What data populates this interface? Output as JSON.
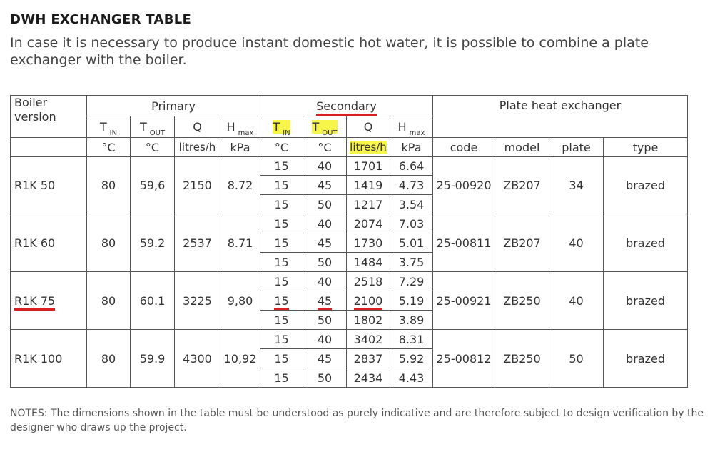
{
  "heading": "DWH EXCHANGER TABLE",
  "intro": "In case it is necessary to produce instant domestic hot water, it is possible to combine a plate exchanger with the boiler.",
  "header": {
    "boiler_version": "Boiler version",
    "primary": "Primary",
    "secondary": "Secondary",
    "plate": "Plate heat exchanger",
    "t": "T",
    "in": "IN",
    "out": "OUT",
    "q": "Q",
    "h": "H",
    "max": "max",
    "deg": "°C",
    "flow_unit": "litres/h",
    "pressure_unit": "kPa",
    "code": "code",
    "model": "model",
    "plate_col": "plate",
    "type": "type"
  },
  "rows": [
    {
      "version": "R1K 50",
      "p_tin": "80",
      "p_tout": "59,6",
      "p_q": "2150",
      "p_h": "8.72",
      "secondary": [
        {
          "tin": "15",
          "tout": "40",
          "q": "1701",
          "h": "6.64"
        },
        {
          "tin": "15",
          "tout": "45",
          "q": "1419",
          "h": "4.73"
        },
        {
          "tin": "15",
          "tout": "50",
          "q": "1217",
          "h": "3.54"
        }
      ],
      "code": "25-00920",
      "model": "ZB207",
      "plate": "34",
      "type": "brazed"
    },
    {
      "version": "R1K 60",
      "p_tin": "80",
      "p_tout": "59.2",
      "p_q": "2537",
      "p_h": "8.71",
      "secondary": [
        {
          "tin": "15",
          "tout": "40",
          "q": "2074",
          "h": "7.03"
        },
        {
          "tin": "15",
          "tout": "45",
          "q": "1730",
          "h": "5.01"
        },
        {
          "tin": "15",
          "tout": "50",
          "q": "1484",
          "h": "3.75"
        }
      ],
      "code": "25-00811",
      "model": "ZB207",
      "plate": "40",
      "type": "brazed"
    },
    {
      "version": "R1K 75",
      "p_tin": "80",
      "p_tout": "60.1",
      "p_q": "3225",
      "p_h": "9,80",
      "secondary": [
        {
          "tin": "15",
          "tout": "40",
          "q": "2518",
          "h": "7.29"
        },
        {
          "tin": "15",
          "tout": "45",
          "q": "2100",
          "h": "5.19"
        },
        {
          "tin": "15",
          "tout": "50",
          "q": "1802",
          "h": "3.89"
        }
      ],
      "code": "25-00921",
      "model": "ZB250",
      "plate": "40",
      "type": "brazed"
    },
    {
      "version": "R1K 100",
      "p_tin": "80",
      "p_tout": "59.9",
      "p_q": "4300",
      "p_h": "10,92",
      "secondary": [
        {
          "tin": "15",
          "tout": "40",
          "q": "3402",
          "h": "8.31"
        },
        {
          "tin": "15",
          "tout": "45",
          "q": "2837",
          "h": "5.92"
        },
        {
          "tin": "15",
          "tout": "50",
          "q": "2434",
          "h": "4.43"
        }
      ],
      "code": "25-00812",
      "model": "ZB250",
      "plate": "50",
      "type": "brazed"
    }
  ],
  "notes": "NOTES: The dimensions shown in the table must be understood as purely indicative and are therefore subject to design verification by the designer who draws up the project.",
  "colors": {
    "highlight": "#f7f54a",
    "underline": "#d81e1e",
    "border": "#555555"
  }
}
